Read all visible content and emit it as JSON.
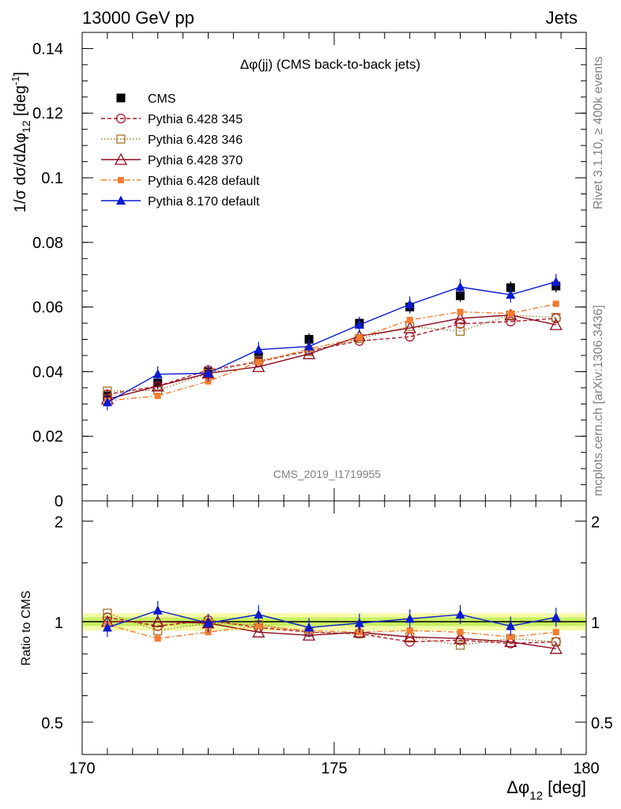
{
  "header": {
    "left": "13000 GeV pp",
    "right": "Jets"
  },
  "side_labels": {
    "rivet": "Rivet 3.1.10, ≥ 400k events",
    "mcplots": "mcplots.cern.ch [arXiv:1306.3436]"
  },
  "watermark": "CMS_2019_I1719955",
  "chart_data": [
    {
      "type": "line",
      "title": "Δφ(jj) (CMS back-to-back jets)",
      "ylabel": "1/σ dσ/dΔφ_12 [deg^-1]",
      "xlim": [
        170,
        180
      ],
      "ylim": [
        0,
        0.145
      ],
      "yticks": [
        "0",
        "0.02",
        "0.04",
        "0.06",
        "0.08",
        "0.1",
        "0.12",
        "0.14"
      ],
      "x": [
        170.5,
        171.5,
        172.5,
        173.5,
        174.5,
        175.5,
        176.5,
        177.5,
        178.5,
        179.4
      ],
      "legend": "top-left",
      "series": [
        {
          "name": "CMS",
          "color": "#000000",
          "marker": "square-filled",
          "line": "none",
          "values": [
            0.0325,
            0.0365,
            0.04,
            0.0445,
            0.05,
            0.055,
            0.06,
            0.0635,
            0.066,
            0.0665
          ]
        },
        {
          "name": "Pythia 6.428 345",
          "color": "#b2182b",
          "marker": "circle-open",
          "line": "dashed",
          "values": [
            0.033,
            0.0355,
            0.0405,
            0.043,
            0.0465,
            0.0495,
            0.0508,
            0.0548,
            0.0555,
            0.0565
          ]
        },
        {
          "name": "Pythia 6.428 346",
          "color": "#a0782a",
          "marker": "square-open",
          "line": "dotted",
          "values": [
            0.034,
            0.0342,
            0.0395,
            0.0435,
            0.0462,
            0.0502,
            0.054,
            0.0525,
            0.0575,
            0.0568
          ]
        },
        {
          "name": "Pythia 6.428 370",
          "color": "#8b0a1e",
          "marker": "triangle-open",
          "line": "solid",
          "values": [
            0.0315,
            0.0355,
            0.0395,
            0.0415,
            0.0455,
            0.051,
            0.0535,
            0.0565,
            0.0575,
            0.0545
          ]
        },
        {
          "name": "Pythia 6.428 default",
          "color": "#f47c2f",
          "marker": "square-filled-small",
          "line": "dashdot",
          "values": [
            0.031,
            0.0325,
            0.037,
            0.043,
            0.047,
            0.0505,
            0.056,
            0.0585,
            0.058,
            0.061
          ]
        },
        {
          "name": "Pythia 8.170 default",
          "color": "#0a1acf",
          "marker": "triangle-filled",
          "line": "solid",
          "values": [
            0.0305,
            0.0392,
            0.0395,
            0.0468,
            0.0478,
            0.0545,
            0.0608,
            0.0662,
            0.0638,
            0.0678
          ]
        }
      ]
    },
    {
      "type": "line",
      "xlabel": "Δφ_12 [deg]",
      "ylabel": "Ratio to CMS",
      "xlim": [
        170,
        180
      ],
      "ylim": [
        0.4,
        2.3
      ],
      "y_scale": "log",
      "yticks": [
        "0.5",
        "1",
        "2"
      ],
      "xticks": [
        "170",
        "175",
        "180"
      ],
      "x": [
        170.5,
        171.5,
        172.5,
        173.5,
        174.5,
        175.5,
        176.5,
        177.5,
        178.5,
        179.4
      ],
      "series": [
        {
          "name": "Pythia 6.428 345",
          "values": [
            1.03,
            0.97,
            1.01,
            0.96,
            0.93,
            0.92,
            0.87,
            0.88,
            0.86,
            0.87
          ]
        },
        {
          "name": "Pythia 6.428 346",
          "values": [
            1.06,
            0.94,
            0.99,
            0.98,
            0.93,
            0.92,
            0.9,
            0.85,
            0.89,
            0.87
          ]
        },
        {
          "name": "Pythia 6.428 370",
          "values": [
            1.0,
            1.0,
            0.99,
            0.93,
            0.91,
            0.93,
            0.9,
            0.89,
            0.87,
            0.83
          ]
        },
        {
          "name": "Pythia 6.428 default",
          "values": [
            0.98,
            0.89,
            0.93,
            0.97,
            0.94,
            0.93,
            0.94,
            0.93,
            0.9,
            0.93
          ]
        },
        {
          "name": "Pythia 8.170 default",
          "values": [
            0.96,
            1.08,
            0.99,
            1.05,
            0.96,
            0.99,
            1.02,
            1.05,
            0.97,
            1.03
          ]
        }
      ]
    }
  ]
}
